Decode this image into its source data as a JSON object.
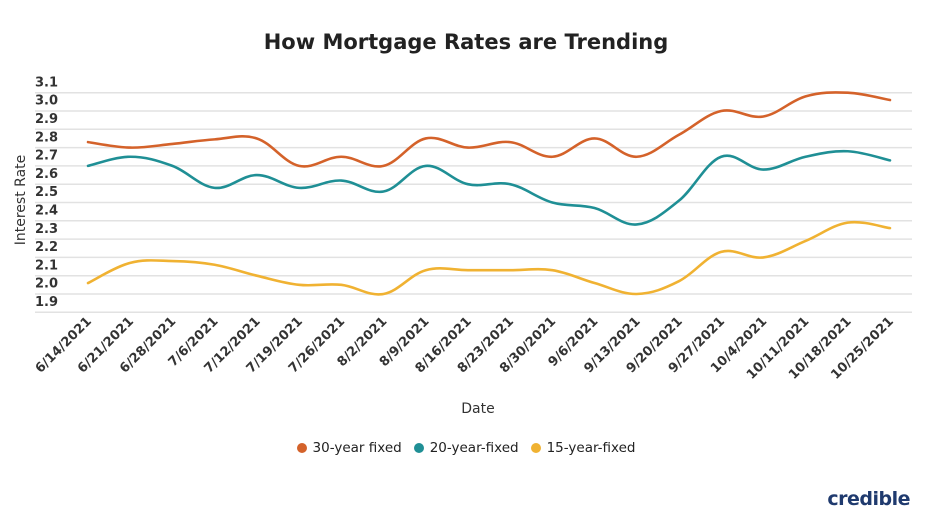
{
  "chart_data": {
    "type": "line",
    "title": "How Mortgage Rates are Trending",
    "xlabel": "Date",
    "ylabel": "Interest Rate",
    "ylim": [
      1.8,
      3.1
    ],
    "yticks": [
      "3.1",
      "3.0",
      "2.9",
      "2.8",
      "2.7",
      "2.6",
      "2.5",
      "2.4",
      "2.3",
      "2.2",
      "2.1",
      "2.0",
      "1.9"
    ],
    "grid": true,
    "legend_position": "bottom",
    "categories": [
      "6/14/2021",
      "6/21/2021",
      "6/28/2021",
      "7/6/2021",
      "7/12/2021",
      "7/19/2021",
      "7/26/2021",
      "8/2/2021",
      "8/9/2021",
      "8/16/2021",
      "8/23/2021",
      "8/30/2021",
      "9/6/2021",
      "9/13/2021",
      "9/20/2021",
      "9/27/2021",
      "10/4/2021",
      "10/11/2021",
      "10/18/2021",
      "10/25/2021"
    ],
    "series": [
      {
        "name": "30-year fixed",
        "color": "#d4622a",
        "values": [
          2.73,
          2.7,
          2.72,
          2.745,
          2.75,
          2.6,
          2.65,
          2.6,
          2.75,
          2.7,
          2.73,
          2.65,
          2.75,
          2.65,
          2.77,
          2.9,
          2.87,
          2.98,
          3.0,
          2.96
        ]
      },
      {
        "name": "20-year-fixed",
        "color": "#1f8f95",
        "values": [
          2.6,
          2.65,
          2.6,
          2.48,
          2.55,
          2.48,
          2.52,
          2.46,
          2.6,
          2.5,
          2.5,
          2.4,
          2.37,
          2.28,
          2.41,
          2.65,
          2.58,
          2.65,
          2.68,
          2.63
        ]
      },
      {
        "name": "15-year-fixed",
        "color": "#f0b232",
        "values": [
          1.96,
          2.07,
          2.08,
          2.06,
          2.0,
          1.95,
          1.95,
          1.9,
          2.03,
          2.03,
          2.03,
          2.03,
          1.96,
          1.9,
          1.97,
          2.13,
          2.1,
          2.19,
          2.29,
          2.26
        ]
      }
    ]
  },
  "brand": {
    "logo_text": "credible",
    "color": "#1f3a6e"
  }
}
